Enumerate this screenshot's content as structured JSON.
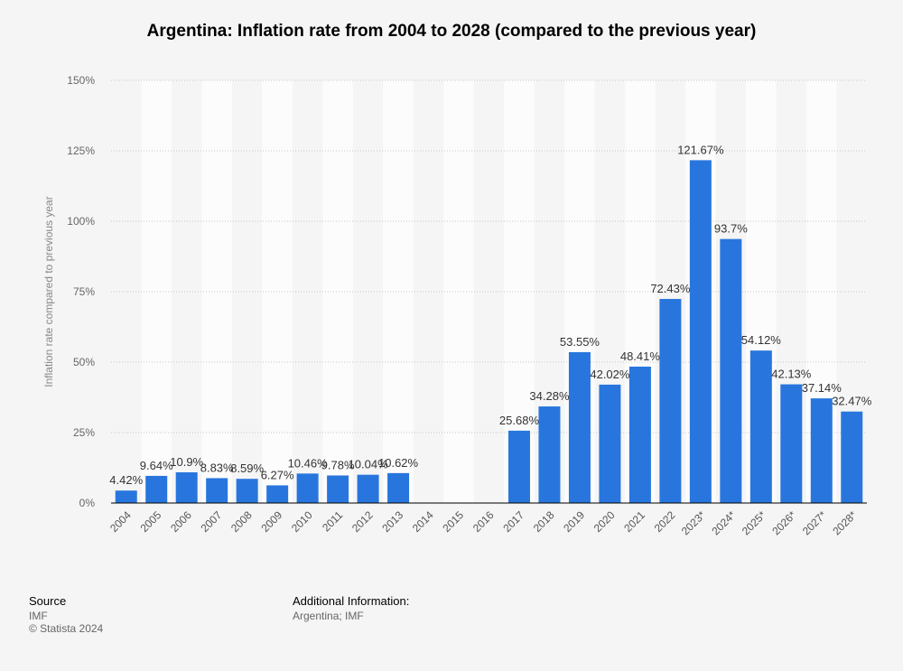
{
  "chart_data": {
    "type": "bar",
    "title": "Argentina: Inflation rate from 2004 to 2028 (compared to the previous year)",
    "ylabel": "Inflation rate compared to previous year",
    "xlabel": "",
    "ylim": [
      0,
      150
    ],
    "yticks": [
      0,
      25,
      50,
      75,
      100,
      125,
      150
    ],
    "ytick_labels": [
      "0%",
      "25%",
      "50%",
      "75%",
      "100%",
      "125%",
      "150%"
    ],
    "grid": true,
    "categories": [
      "2004",
      "2005",
      "2006",
      "2007",
      "2008",
      "2009",
      "2010",
      "2011",
      "2012",
      "2013",
      "2014",
      "2015",
      "2016",
      "2017",
      "2018",
      "2019",
      "2020",
      "2021",
      "2022",
      "2023*",
      "2024*",
      "2025*",
      "2026*",
      "2027*",
      "2028*"
    ],
    "values": [
      4.42,
      9.64,
      10.9,
      8.83,
      8.59,
      6.27,
      10.46,
      9.78,
      10.04,
      10.62,
      null,
      null,
      null,
      25.68,
      34.28,
      53.55,
      42.02,
      48.41,
      72.43,
      121.67,
      93.7,
      54.12,
      42.13,
      37.14,
      32.47
    ],
    "data_labels": [
      "4.42%",
      "9.64%",
      "10.9%",
      "8.83%",
      "8.59%",
      "6.27%",
      "10.46%",
      "9.78%",
      "10.04%",
      "10.62%",
      "",
      "",
      "",
      "25.68%",
      "34.28%",
      "53.55%",
      "42.02%",
      "48.41%",
      "72.43%",
      "121.67%",
      "93.7%",
      "54.12%",
      "42.13%",
      "37.14%",
      "32.47%"
    ],
    "bar_color": "#2876dd"
  },
  "footer": {
    "source_heading": "Source",
    "source_text": "IMF",
    "copyright": "© Statista 2024",
    "info_heading": "Additional Information:",
    "info_text": "Argentina; IMF"
  }
}
